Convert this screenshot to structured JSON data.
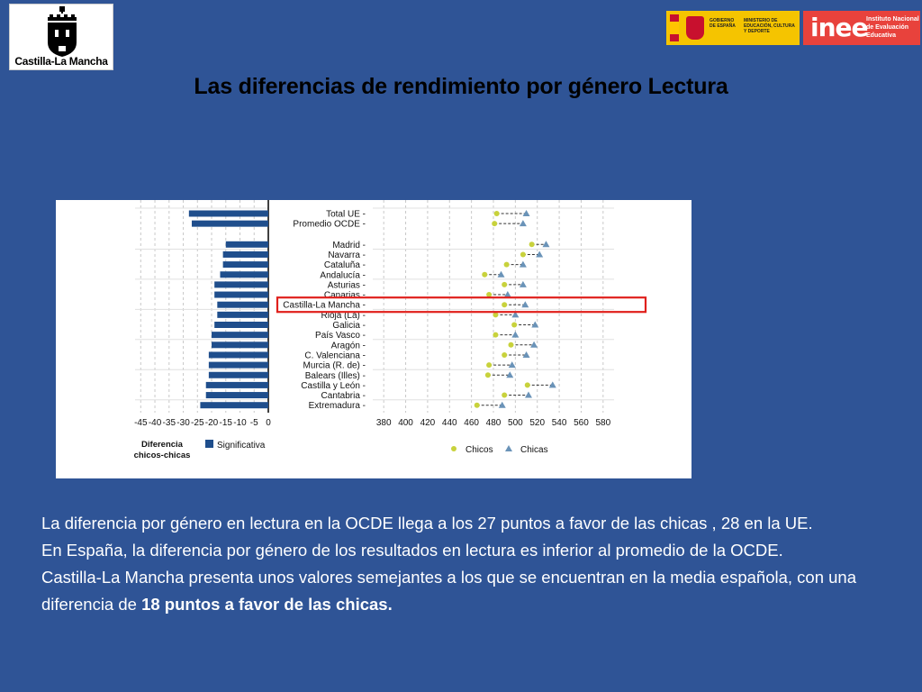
{
  "header": {
    "logo_left_text": "Castilla-La Mancha",
    "gov_text_1": "GOBIERNO DE ESPAÑA",
    "gov_text_2": "MINISTERIO DE EDUCACIÓN, CULTURA Y DEPORTE",
    "inee_mark": "inee",
    "inee_desc_1": "Instituto Nacional",
    "inee_desc_2": "de Evaluación",
    "inee_desc_3": "Educativa"
  },
  "title": "Las diferencias de rendimiento por género Lectura",
  "chart_data": {
    "type": "dot-and-bar",
    "left_panel": {
      "xlabel_line1": "Diferencia",
      "xlabel_line2": "chicos-chicas",
      "x_ticks": [
        "-45",
        "-40",
        "-35",
        "-30",
        "-25",
        "-20",
        "-15",
        "-10",
        "-5",
        "0"
      ],
      "xlim": [
        -47,
        0
      ],
      "legend": "Significativa",
      "bar_color": "#1f4e8c"
    },
    "right_panel": {
      "x_ticks": [
        "380",
        "400",
        "420",
        "440",
        "460",
        "480",
        "500",
        "520",
        "540",
        "560",
        "580"
      ],
      "xlim": [
        370,
        590
      ],
      "legend": [
        {
          "name": "Chicos",
          "color": "#c8d23c",
          "marker": "circle"
        },
        {
          "name": "Chicas",
          "color": "#6a93b8",
          "marker": "triangle"
        }
      ]
    },
    "highlight": "Castilla-La Mancha",
    "regions": [
      {
        "label": "Total UE",
        "diff": -28,
        "chicos": 483,
        "chicas": 510,
        "group": 0
      },
      {
        "label": "Promedio OCDE",
        "diff": -27,
        "chicos": 481,
        "chicas": 507,
        "group": 0
      },
      {
        "label": "Madrid",
        "diff": -15,
        "chicos": 515,
        "chicas": 528,
        "group": 1
      },
      {
        "label": "Navarra",
        "diff": -16,
        "chicos": 507,
        "chicas": 522,
        "group": 1
      },
      {
        "label": "Cataluña",
        "diff": -16,
        "chicos": 492,
        "chicas": 507,
        "group": 1
      },
      {
        "label": "Andalucía",
        "diff": -17,
        "chicos": 472,
        "chicas": 487,
        "group": 1
      },
      {
        "label": "Asturias",
        "diff": -19,
        "chicos": 490,
        "chicas": 507,
        "group": 1
      },
      {
        "label": "Canarias",
        "diff": -19,
        "chicos": 476,
        "chicas": 493,
        "group": 1
      },
      {
        "label": "Castilla-La Mancha",
        "diff": -18,
        "chicos": 490,
        "chicas": 509,
        "group": 1
      },
      {
        "label": "Rioja (La)",
        "diff": -18,
        "chicos": 482,
        "chicas": 500,
        "group": 1
      },
      {
        "label": "Galicia",
        "diff": -19,
        "chicos": 499,
        "chicas": 518,
        "group": 1
      },
      {
        "label": "País Vasco",
        "diff": -20,
        "chicos": 482,
        "chicas": 500,
        "group": 1
      },
      {
        "label": "Aragón",
        "diff": -20,
        "chicos": 496,
        "chicas": 517,
        "group": 1
      },
      {
        "label": "C. Valenciana",
        "diff": -21,
        "chicos": 490,
        "chicas": 510,
        "group": 1
      },
      {
        "label": "Murcia (R. de)",
        "diff": -21,
        "chicos": 476,
        "chicas": 497,
        "group": 1
      },
      {
        "label": "Balears (Illes)",
        "diff": -21,
        "chicos": 475,
        "chicas": 495,
        "group": 1
      },
      {
        "label": "Castilla y León",
        "diff": -22,
        "chicos": 511,
        "chicas": 534,
        "group": 1
      },
      {
        "label": "Cantabria",
        "diff": -22,
        "chicos": 490,
        "chicas": 512,
        "group": 1
      },
      {
        "label": "Extremadura",
        "diff": -24,
        "chicos": 465,
        "chicas": 488,
        "group": 1
      }
    ]
  },
  "body": {
    "p1": "La diferencia por género en lectura en la OCDE llega a los 27 puntos a favor de las chicas , 28 en la UE.",
    "p2": "En España, la diferencia por género de los resultados en lectura es inferior al promedio de la OCDE.",
    "p3_start": "Castilla-La Mancha presenta unos valores semejantes a los que se encuentran en la media española, con una diferencia de ",
    "p3_bold": "18 puntos a favor de las chicas."
  }
}
